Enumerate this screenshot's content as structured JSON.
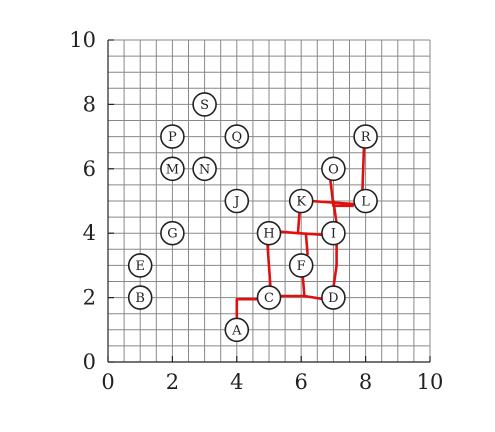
{
  "chart_data": {
    "type": "scatter",
    "xlim": [
      0,
      10
    ],
    "ylim": [
      0,
      10
    ],
    "grid": true,
    "x_ticks": [
      "0",
      "2",
      "4",
      "6",
      "8",
      "10"
    ],
    "y_ticks": [
      "0",
      "2",
      "4",
      "6",
      "8",
      "10"
    ],
    "nodes": [
      {
        "label": "A",
        "x": 4,
        "y": 1
      },
      {
        "label": "B",
        "x": 1,
        "y": 2
      },
      {
        "label": "C",
        "x": 5,
        "y": 2
      },
      {
        "label": "D",
        "x": 7,
        "y": 2
      },
      {
        "label": "E",
        "x": 1,
        "y": 3
      },
      {
        "label": "F",
        "x": 6,
        "y": 3
      },
      {
        "label": "G",
        "x": 2,
        "y": 4
      },
      {
        "label": "H",
        "x": 5,
        "y": 4
      },
      {
        "label": "I",
        "x": 7,
        "y": 4
      },
      {
        "label": "J",
        "x": 4,
        "y": 5
      },
      {
        "label": "K",
        "x": 6,
        "y": 5
      },
      {
        "label": "L",
        "x": 8,
        "y": 5
      },
      {
        "label": "M",
        "x": 2,
        "y": 6
      },
      {
        "label": "N",
        "x": 3,
        "y": 6
      },
      {
        "label": "O",
        "x": 7,
        "y": 6
      },
      {
        "label": "P",
        "x": 2,
        "y": 7
      },
      {
        "label": "Q",
        "x": 4,
        "y": 7
      },
      {
        "label": "R",
        "x": 8,
        "y": 7
      },
      {
        "label": "S",
        "x": 3,
        "y": 8
      }
    ],
    "edge_color": "#e01010",
    "edges": [
      [
        [
          4,
          1.4
        ],
        [
          4,
          1.95
        ],
        [
          4.7,
          1.95
        ]
      ],
      [
        [
          5.3,
          2.05
        ],
        [
          6.1,
          2.05
        ],
        [
          6.1,
          2.05
        ],
        [
          6.7,
          1.95
        ]
      ],
      [
        [
          6.1,
          2.05
        ],
        [
          6.05,
          2.65
        ]
      ],
      [
        [
          5.05,
          2.25
        ],
        [
          4.95,
          3.7
        ]
      ],
      [
        [
          5.3,
          4.05
        ],
        [
          5.9,
          4.0
        ],
        [
          6.7,
          3.95
        ]
      ],
      [
        [
          5.9,
          4.0
        ],
        [
          5.95,
          4.7
        ]
      ],
      [
        [
          6.2,
          3.35
        ],
        [
          6.15,
          3.95
        ]
      ],
      [
        [
          7.0,
          2.3
        ],
        [
          7.1,
          3.0
        ],
        [
          7.1,
          3.65
        ]
      ],
      [
        [
          7.1,
          4.3
        ],
        [
          7.0,
          5.0
        ]
      ],
      [
        [
          6.3,
          5.0
        ],
        [
          7.7,
          4.9
        ]
      ],
      [
        [
          6.9,
          5.7
        ],
        [
          7.0,
          4.85
        ],
        [
          7.6,
          4.85
        ]
      ],
      [
        [
          7.95,
          6.7
        ],
        [
          7.9,
          5.3
        ]
      ]
    ]
  }
}
